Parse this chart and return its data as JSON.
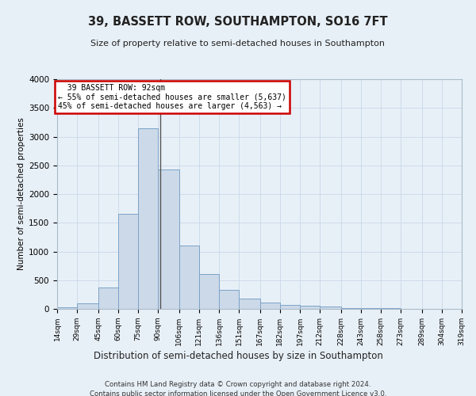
{
  "title": "39, BASSETT ROW, SOUTHAMPTON, SO16 7FT",
  "subtitle": "Size of property relative to semi-detached houses in Southampton",
  "xlabel": "Distribution of semi-detached houses by size in Southampton",
  "ylabel": "Number of semi-detached properties",
  "footer_line1": "Contains HM Land Registry data © Crown copyright and database right 2024.",
  "footer_line2": "Contains public sector information licensed under the Open Government Licence v3.0.",
  "annotation_title": "39 BASSETT ROW: 92sqm",
  "annotation_line2": "← 55% of semi-detached houses are smaller (5,637)",
  "annotation_line3": "45% of semi-detached houses are larger (4,563) →",
  "property_size": 92,
  "bin_edges": [
    14,
    29,
    45,
    60,
    75,
    90,
    106,
    121,
    136,
    151,
    167,
    182,
    197,
    212,
    228,
    243,
    258,
    273,
    289,
    304,
    319
  ],
  "bin_counts": [
    30,
    100,
    370,
    1650,
    3150,
    2430,
    1100,
    610,
    330,
    185,
    110,
    75,
    55,
    35,
    20,
    12,
    8,
    5,
    4,
    3
  ],
  "bar_color": "#ccd9e8",
  "bar_edge_color": "#7ba3c8",
  "annotation_box_color": "#ffffff",
  "annotation_box_edge": "#cc0000",
  "grid_color": "#c8d8e8",
  "bg_color": "#e8f0f7",
  "ylim": [
    0,
    4000
  ],
  "yticks": [
    0,
    500,
    1000,
    1500,
    2000,
    2500,
    3000,
    3500,
    4000
  ]
}
